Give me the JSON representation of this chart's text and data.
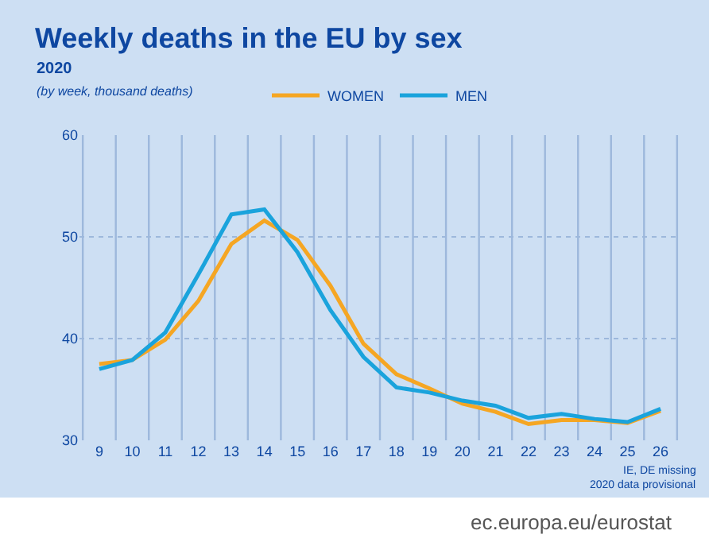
{
  "chart_data": {
    "type": "line",
    "title": "Weekly deaths in the EU by sex",
    "subtitle": "2020",
    "annotations": [
      "(by week, thousand deaths)",
      "IE, DE missing",
      "2020 data provisional",
      "ec.europa.eu/eurostat"
    ],
    "categories": [
      "9",
      "10",
      "11",
      "12",
      "13",
      "14",
      "15",
      "16",
      "17",
      "18",
      "19",
      "20",
      "21",
      "22",
      "23",
      "24",
      "25",
      "26"
    ],
    "series": [
      {
        "name": "WOMEN",
        "color": "#f5a623",
        "values": [
          37.5,
          37.9,
          39.9,
          43.7,
          49.3,
          51.6,
          49.7,
          45.2,
          39.5,
          36.5,
          35.1,
          33.6,
          32.8,
          31.6,
          32.0,
          32.0,
          31.7,
          32.9
        ]
      },
      {
        "name": "MEN",
        "color": "#1aa3dc",
        "values": [
          37.0,
          37.9,
          40.6,
          46.3,
          52.2,
          52.7,
          48.5,
          42.8,
          38.2,
          35.2,
          34.7,
          33.9,
          33.4,
          32.2,
          32.6,
          32.1,
          31.8,
          33.1
        ]
      }
    ],
    "ylim": [
      30,
      60
    ],
    "yticks": [
      30,
      40,
      50,
      60
    ],
    "grid": true,
    "legend": "top",
    "marker": "none",
    "line_style": "solid"
  }
}
